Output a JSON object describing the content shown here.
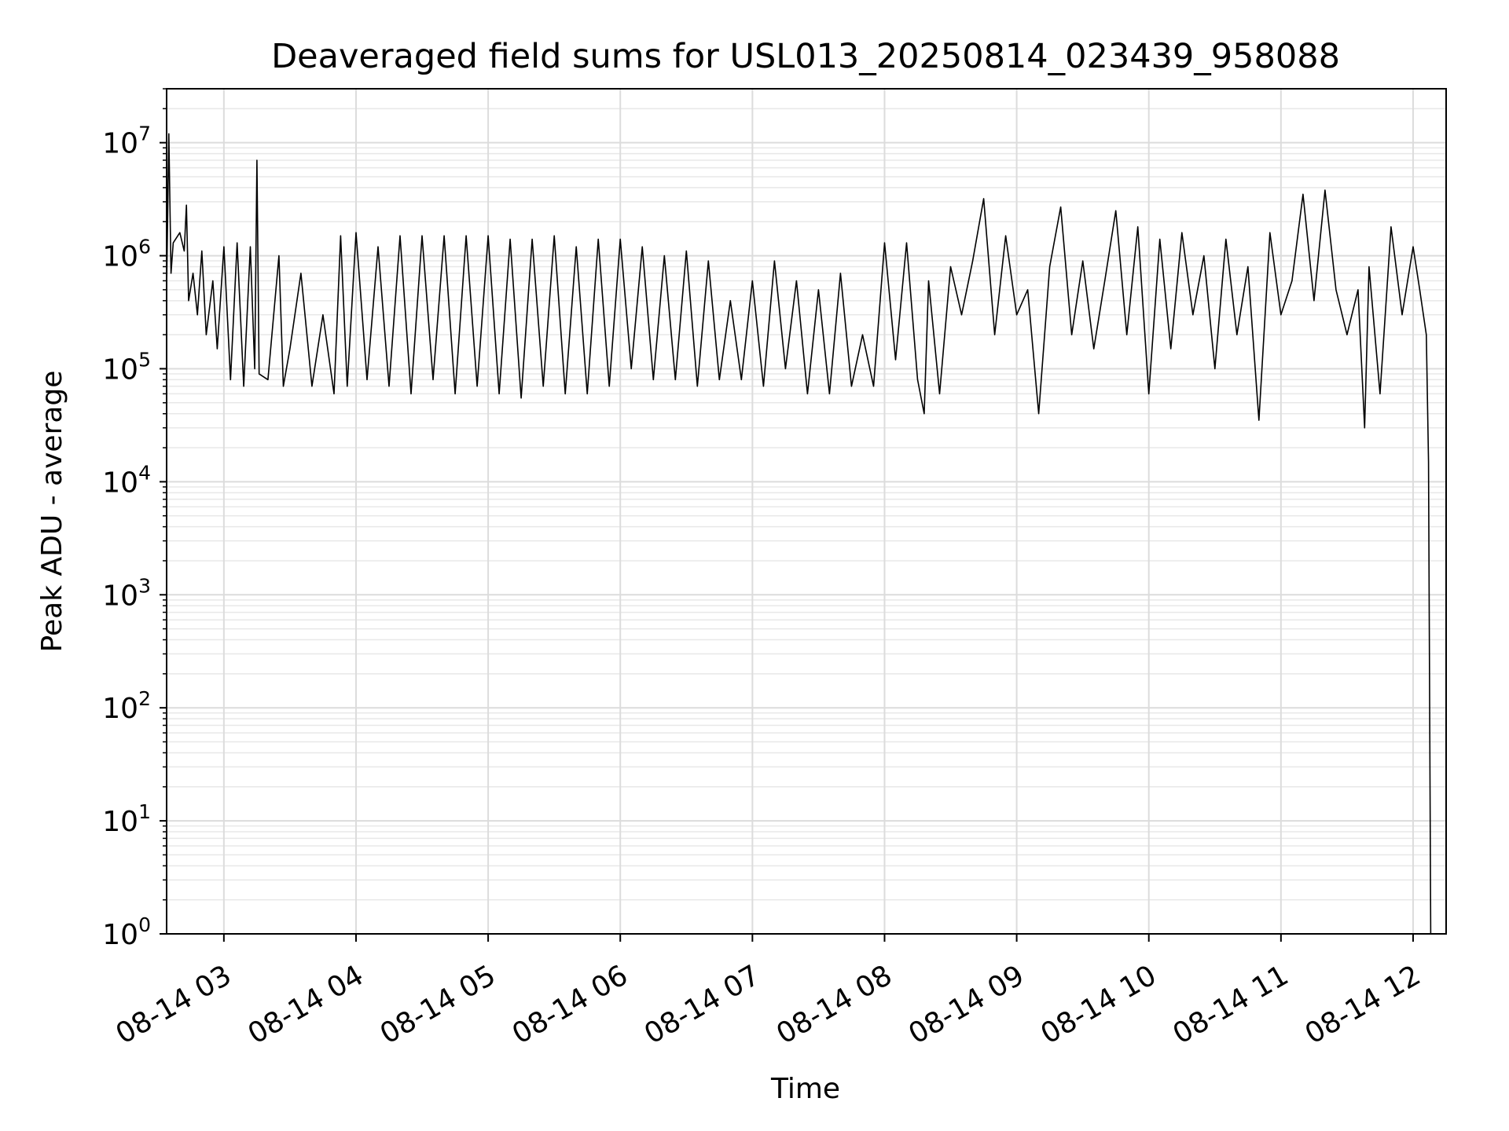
{
  "chart_data": {
    "type": "line",
    "title": "Deaveraged field sums for USL013_20250814_023439_958088",
    "xlabel": "Time",
    "ylabel": "Peak ADU - average",
    "y_scale": "log",
    "ylim": [
      1,
      30000000
    ],
    "xlim": [
      "08-14 02:34",
      "08-14 12:15"
    ],
    "grid": true,
    "x_tick_labels": [
      "08-14 03",
      "08-14 04",
      "08-14 05",
      "08-14 06",
      "08-14 07",
      "08-14 08",
      "08-14 09",
      "08-14 10",
      "08-14 11",
      "08-14 12"
    ],
    "y_tick_labels": [
      {
        "base": "10",
        "exp": "0"
      },
      {
        "base": "10",
        "exp": "1"
      },
      {
        "base": "10",
        "exp": "2"
      },
      {
        "base": "10",
        "exp": "3"
      },
      {
        "base": "10",
        "exp": "4"
      },
      {
        "base": "10",
        "exp": "5"
      },
      {
        "base": "10",
        "exp": "6"
      },
      {
        "base": "10",
        "exp": "7"
      }
    ],
    "series": [
      {
        "color": "#000000",
        "points": [
          [
            "08-14 02:34",
            500000
          ],
          [
            "08-14 02:35",
            12000000
          ],
          [
            "08-14 02:36",
            700000
          ],
          [
            "08-14 02:37",
            1300000
          ],
          [
            "08-14 02:40",
            1600000
          ],
          [
            "08-14 02:42",
            1100000
          ],
          [
            "08-14 02:43",
            2800000
          ],
          [
            "08-14 02:44",
            400000
          ],
          [
            "08-14 02:46",
            700000
          ],
          [
            "08-14 02:48",
            300000
          ],
          [
            "08-14 02:50",
            1100000
          ],
          [
            "08-14 02:52",
            200000
          ],
          [
            "08-14 02:55",
            600000
          ],
          [
            "08-14 02:57",
            150000
          ],
          [
            "08-14 03:00",
            1200000
          ],
          [
            "08-14 03:03",
            80000
          ],
          [
            "08-14 03:06",
            1300000
          ],
          [
            "08-14 03:09",
            70000
          ],
          [
            "08-14 03:12",
            1200000
          ],
          [
            "08-14 03:14",
            100000
          ],
          [
            "08-14 03:15",
            7000000
          ],
          [
            "08-14 03:16",
            90000
          ],
          [
            "08-14 03:20",
            80000
          ],
          [
            "08-14 03:25",
            1000000
          ],
          [
            "08-14 03:27",
            70000
          ],
          [
            "08-14 03:30",
            150000
          ],
          [
            "08-14 03:35",
            700000
          ],
          [
            "08-14 03:40",
            70000
          ],
          [
            "08-14 03:45",
            300000
          ],
          [
            "08-14 03:50",
            60000
          ],
          [
            "08-14 03:53",
            1500000
          ],
          [
            "08-14 03:56",
            70000
          ],
          [
            "08-14 04:00",
            1600000
          ],
          [
            "08-14 04:05",
            80000
          ],
          [
            "08-14 04:10",
            1200000
          ],
          [
            "08-14 04:15",
            70000
          ],
          [
            "08-14 04:20",
            1500000
          ],
          [
            "08-14 04:25",
            60000
          ],
          [
            "08-14 04:30",
            1500000
          ],
          [
            "08-14 04:35",
            80000
          ],
          [
            "08-14 04:40",
            1500000
          ],
          [
            "08-14 04:45",
            60000
          ],
          [
            "08-14 04:50",
            1500000
          ],
          [
            "08-14 04:55",
            70000
          ],
          [
            "08-14 05:00",
            1500000
          ],
          [
            "08-14 05:05",
            60000
          ],
          [
            "08-14 05:10",
            1400000
          ],
          [
            "08-14 05:15",
            55000
          ],
          [
            "08-14 05:20",
            1400000
          ],
          [
            "08-14 05:25",
            70000
          ],
          [
            "08-14 05:30",
            1500000
          ],
          [
            "08-14 05:35",
            60000
          ],
          [
            "08-14 05:40",
            1200000
          ],
          [
            "08-14 05:45",
            60000
          ],
          [
            "08-14 05:50",
            1400000
          ],
          [
            "08-14 05:55",
            70000
          ],
          [
            "08-14 06:00",
            1400000
          ],
          [
            "08-14 06:05",
            100000
          ],
          [
            "08-14 06:10",
            1200000
          ],
          [
            "08-14 06:15",
            80000
          ],
          [
            "08-14 06:20",
            1000000
          ],
          [
            "08-14 06:25",
            80000
          ],
          [
            "08-14 06:30",
            1100000
          ],
          [
            "08-14 06:35",
            70000
          ],
          [
            "08-14 06:40",
            900000
          ],
          [
            "08-14 06:45",
            80000
          ],
          [
            "08-14 06:50",
            400000
          ],
          [
            "08-14 06:55",
            80000
          ],
          [
            "08-14 07:00",
            600000
          ],
          [
            "08-14 07:05",
            70000
          ],
          [
            "08-14 07:10",
            900000
          ],
          [
            "08-14 07:15",
            100000
          ],
          [
            "08-14 07:20",
            600000
          ],
          [
            "08-14 07:25",
            60000
          ],
          [
            "08-14 07:30",
            500000
          ],
          [
            "08-14 07:35",
            60000
          ],
          [
            "08-14 07:40",
            700000
          ],
          [
            "08-14 07:45",
            70000
          ],
          [
            "08-14 07:50",
            200000
          ],
          [
            "08-14 07:55",
            70000
          ],
          [
            "08-14 08:00",
            1300000
          ],
          [
            "08-14 08:05",
            120000
          ],
          [
            "08-14 08:10",
            1300000
          ],
          [
            "08-14 08:15",
            80000
          ],
          [
            "08-14 08:18",
            40000
          ],
          [
            "08-14 08:20",
            600000
          ],
          [
            "08-14 08:25",
            60000
          ],
          [
            "08-14 08:30",
            800000
          ],
          [
            "08-14 08:35",
            300000
          ],
          [
            "08-14 08:40",
            900000
          ],
          [
            "08-14 08:45",
            3200000
          ],
          [
            "08-14 08:50",
            200000
          ],
          [
            "08-14 08:55",
            1500000
          ],
          [
            "08-14 09:00",
            300000
          ],
          [
            "08-14 09:05",
            500000
          ],
          [
            "08-14 09:10",
            40000
          ],
          [
            "08-14 09:15",
            800000
          ],
          [
            "08-14 09:20",
            2700000
          ],
          [
            "08-14 09:25",
            200000
          ],
          [
            "08-14 09:30",
            900000
          ],
          [
            "08-14 09:35",
            150000
          ],
          [
            "08-14 09:40",
            600000
          ],
          [
            "08-14 09:45",
            2500000
          ],
          [
            "08-14 09:50",
            200000
          ],
          [
            "08-14 09:55",
            1800000
          ],
          [
            "08-14 10:00",
            60000
          ],
          [
            "08-14 10:05",
            1400000
          ],
          [
            "08-14 10:10",
            150000
          ],
          [
            "08-14 10:15",
            1600000
          ],
          [
            "08-14 10:20",
            300000
          ],
          [
            "08-14 10:25",
            1000000
          ],
          [
            "08-14 10:30",
            100000
          ],
          [
            "08-14 10:35",
            1400000
          ],
          [
            "08-14 10:40",
            200000
          ],
          [
            "08-14 10:45",
            800000
          ],
          [
            "08-14 10:50",
            35000
          ],
          [
            "08-14 10:55",
            1600000
          ],
          [
            "08-14 11:00",
            300000
          ],
          [
            "08-14 11:05",
            600000
          ],
          [
            "08-14 11:10",
            3500000
          ],
          [
            "08-14 11:15",
            400000
          ],
          [
            "08-14 11:20",
            3800000
          ],
          [
            "08-14 11:25",
            500000
          ],
          [
            "08-14 11:30",
            200000
          ],
          [
            "08-14 11:35",
            500000
          ],
          [
            "08-14 11:38",
            30000
          ],
          [
            "08-14 11:40",
            800000
          ],
          [
            "08-14 11:45",
            60000
          ],
          [
            "08-14 11:50",
            1800000
          ],
          [
            "08-14 11:55",
            300000
          ],
          [
            "08-14 12:00",
            1200000
          ],
          [
            "08-14 12:03",
            500000
          ],
          [
            "08-14 12:06",
            200000
          ],
          [
            "08-14 12:07",
            15000
          ],
          [
            "08-14 12:08",
            1
          ]
        ]
      }
    ]
  }
}
